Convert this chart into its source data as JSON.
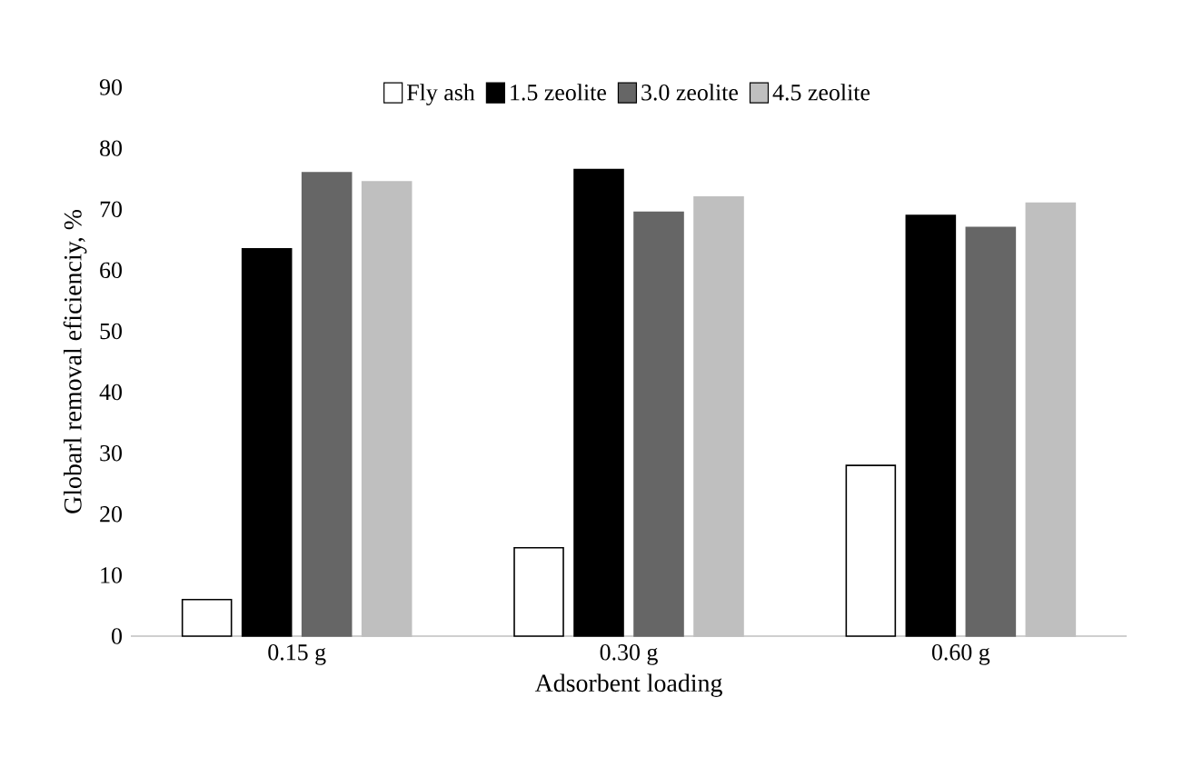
{
  "chart_data": {
    "type": "bar",
    "xlabel": "Adsorbent loading",
    "ylabel": "Globarl removal eficienciy,  %",
    "categories": [
      "0.15 g",
      "0.30 g",
      "0.60 g"
    ],
    "series": [
      {
        "name": "Fly ash",
        "color": "#ffffff",
        "values": [
          6,
          14.5,
          28
        ]
      },
      {
        "name": "1.5 zeolite",
        "color": "#000000",
        "values": [
          63.5,
          76.5,
          69
        ]
      },
      {
        "name": "3.0 zeolite",
        "color": "#666666",
        "values": [
          76,
          69.5,
          67
        ]
      },
      {
        "name": "4.5 zeolite",
        "color": "#bfbfbf",
        "values": [
          74.5,
          72,
          71
        ]
      }
    ],
    "ylim": [
      0,
      90
    ],
    "yticks": [
      0,
      10,
      20,
      30,
      40,
      50,
      60,
      70,
      80,
      90
    ],
    "grid": false,
    "legend": "top"
  }
}
